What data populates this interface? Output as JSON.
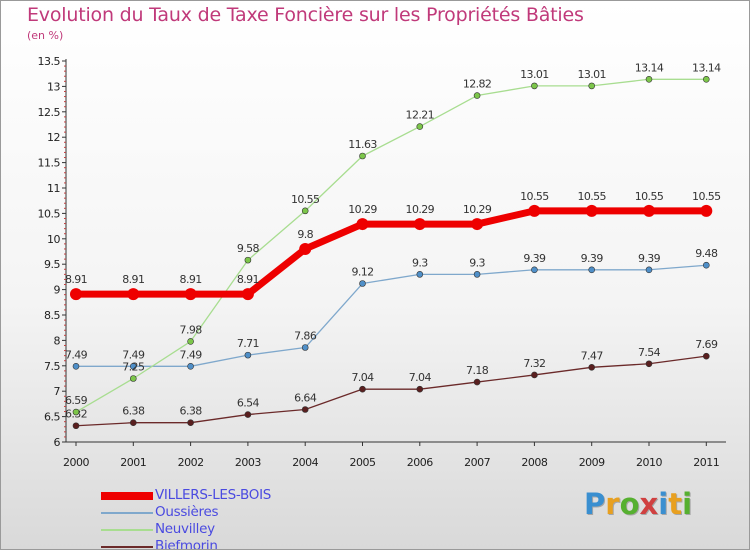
{
  "title": "Evolution du Taux de Taxe Foncière sur les Propriétés Bâties",
  "unit": "(en %)",
  "logo": {
    "text": "Proxiti",
    "colors": [
      "#3a8fd0",
      "#e8a020",
      "#56b030",
      "#d04040",
      "#3a8fd0",
      "#e8a020",
      "#56b030"
    ]
  },
  "chart_data": {
    "type": "line",
    "x": [
      "2000",
      "2001",
      "2002",
      "2003",
      "2004",
      "2005",
      "2006",
      "2007",
      "2008",
      "2009",
      "2010",
      "2011"
    ],
    "ylim": [
      6,
      13.5
    ],
    "yticks": [
      "6",
      "6.5",
      "7",
      "7.5",
      "8",
      "8.5",
      "9",
      "9.5",
      "10",
      "10.5",
      "11",
      "11.5",
      "12",
      "12.5",
      "13",
      "13.5"
    ],
    "grid": false,
    "legend": "bottom-left",
    "series": [
      {
        "name": "Biefmorin",
        "color": "#6b2a2a",
        "marker": "#5a1f1f",
        "width": 1.3,
        "big": false,
        "values": [
          6.32,
          6.38,
          6.38,
          6.54,
          6.64,
          7.04,
          7.04,
          7.18,
          7.32,
          7.47,
          7.54,
          7.69
        ],
        "labels": [
          "6.32",
          "6.38",
          "6.38",
          "6.54",
          "6.64",
          "7.04",
          "7.04",
          "7.18",
          "7.32",
          "7.47",
          "7.54",
          "7.69"
        ]
      },
      {
        "name": "Oussières",
        "color": "#7fa8cc",
        "marker": "#4f8fc8",
        "width": 1.3,
        "big": false,
        "values": [
          7.49,
          7.49,
          7.49,
          7.71,
          7.86,
          9.12,
          9.3,
          9.3,
          9.39,
          9.39,
          9.39,
          9.48
        ],
        "labels": [
          "7.49",
          "7.49",
          "7.49",
          "7.71",
          "7.86",
          "9.12",
          "9.3",
          "9.3",
          "9.39",
          "9.39",
          "9.39",
          "9.48"
        ]
      },
      {
        "name": "Neuvilley",
        "color": "#a8dd90",
        "marker": "#7cc64a",
        "width": 1.3,
        "big": false,
        "values": [
          6.59,
          7.25,
          7.98,
          9.58,
          10.55,
          11.63,
          12.21,
          12.82,
          13.01,
          13.01,
          13.14,
          13.14
        ],
        "labels": [
          "6.59",
          "7.25",
          "7.98",
          "9.58",
          "10.55",
          "11.63",
          "12.21",
          "12.82",
          "13.01",
          "13.01",
          "13.14",
          "13.14"
        ]
      },
      {
        "name": "VILLERS-LES-BOIS",
        "color": "#ee0000",
        "marker": "#ee0000",
        "width": 7,
        "big": true,
        "values": [
          8.91,
          8.91,
          8.91,
          8.91,
          9.8,
          10.29,
          10.29,
          10.29,
          10.55,
          10.55,
          10.55,
          10.55
        ],
        "labels": [
          "8.91",
          "8.91",
          "8.91",
          "8.91",
          "9.8",
          "10.29",
          "10.29",
          "10.29",
          "10.55",
          "10.55",
          "10.55",
          "10.55"
        ]
      }
    ],
    "legend_order": [
      "VILLERS-LES-BOIS",
      "Oussières",
      "Neuvilley",
      "Biefmorin"
    ]
  }
}
